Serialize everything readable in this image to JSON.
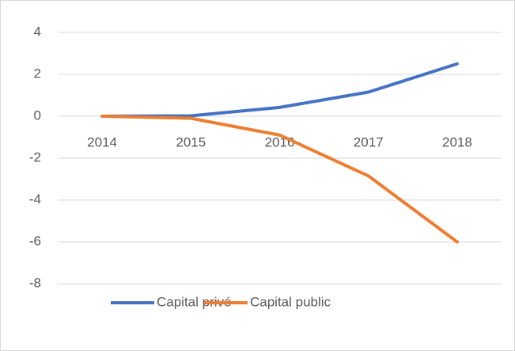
{
  "chart_data": {
    "type": "line",
    "categories": [
      "2014",
      "2015",
      "2016",
      "2017",
      "2018"
    ],
    "series": [
      {
        "name": "Capital privé",
        "color": "#4472c4",
        "values": [
          0,
          0.02,
          0.42,
          1.15,
          2.5
        ]
      },
      {
        "name": "Capital public",
        "color": "#ed7d31",
        "values": [
          0,
          -0.1,
          -0.9,
          -2.85,
          -6.0
        ]
      }
    ],
    "ylim": [
      -8,
      4
    ],
    "yticks": [
      -8,
      -6,
      -4,
      -2,
      0,
      2,
      4
    ],
    "grid": true,
    "legend": "bottom"
  }
}
